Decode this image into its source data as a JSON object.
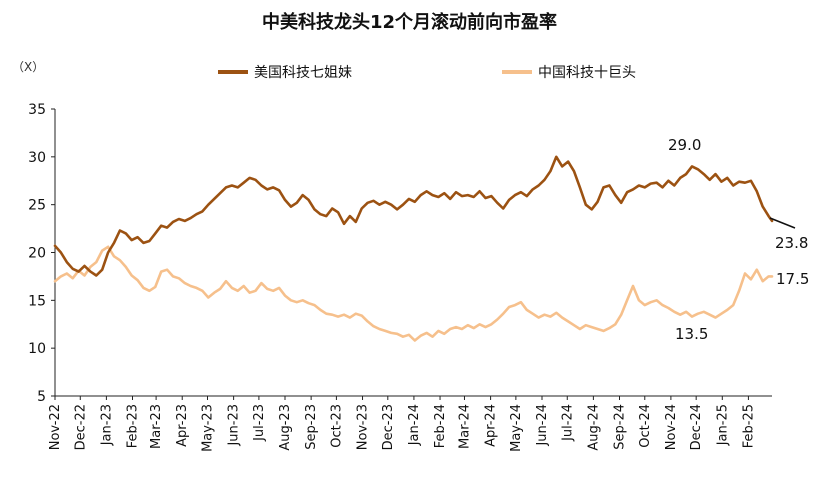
{
  "chart_data": {
    "type": "line",
    "title": "中美科技龙头12个月滚动前向市盈率",
    "unit_label": "（X）",
    "ylim": [
      5,
      35
    ],
    "yticks": [
      5,
      10,
      15,
      20,
      25,
      30,
      35
    ],
    "xlim": [
      "2022-11-01",
      "2025-03-01"
    ],
    "xticks": [
      "Nov-22",
      "Dec-22",
      "Jan-23",
      "Feb-23",
      "Mar-23",
      "Apr-23",
      "May-23",
      "Jun-23",
      "Jul-23",
      "Aug-23",
      "Sep-23",
      "Oct-23",
      "Nov-23",
      "Dec-23",
      "Jan-24",
      "Feb-24",
      "Mar-24",
      "Apr-24",
      "May-24",
      "Jun-24",
      "Jul-24",
      "Aug-24",
      "Sep-24",
      "Oct-24",
      "Nov-24",
      "Dec-24",
      "Jan-25",
      "Feb-25"
    ],
    "legend_position": "top",
    "grid": false,
    "series": [
      {
        "name": "美国科技七姐妹",
        "color": "#9C5212",
        "points": [
          [
            "2022-11-01",
            20.7
          ],
          [
            "2022-11-08",
            20.0
          ],
          [
            "2022-11-15",
            19.0
          ],
          [
            "2022-11-22",
            18.3
          ],
          [
            "2022-11-29",
            18.0
          ],
          [
            "2022-12-06",
            18.6
          ],
          [
            "2022-12-13",
            18.0
          ],
          [
            "2022-12-20",
            17.6
          ],
          [
            "2022-12-27",
            18.2
          ],
          [
            "2023-01-03",
            20.0
          ],
          [
            "2023-01-10",
            21.0
          ],
          [
            "2023-01-17",
            22.3
          ],
          [
            "2023-01-24",
            22.0
          ],
          [
            "2023-01-31",
            21.3
          ],
          [
            "2023-02-07",
            21.6
          ],
          [
            "2023-02-14",
            21.0
          ],
          [
            "2023-02-21",
            21.2
          ],
          [
            "2023-02-28",
            22.0
          ],
          [
            "2023-03-07",
            22.8
          ],
          [
            "2023-03-14",
            22.6
          ],
          [
            "2023-03-21",
            23.2
          ],
          [
            "2023-03-28",
            23.5
          ],
          [
            "2023-04-04",
            23.3
          ],
          [
            "2023-04-11",
            23.6
          ],
          [
            "2023-04-18",
            24.0
          ],
          [
            "2023-04-25",
            24.3
          ],
          [
            "2023-05-02",
            25.0
          ],
          [
            "2023-05-09",
            25.6
          ],
          [
            "2023-05-16",
            26.2
          ],
          [
            "2023-05-23",
            26.8
          ],
          [
            "2023-05-30",
            27.0
          ],
          [
            "2023-06-06",
            26.8
          ],
          [
            "2023-06-13",
            27.3
          ],
          [
            "2023-06-20",
            27.8
          ],
          [
            "2023-06-27",
            27.6
          ],
          [
            "2023-07-04",
            27.0
          ],
          [
            "2023-07-11",
            26.6
          ],
          [
            "2023-07-18",
            26.8
          ],
          [
            "2023-07-25",
            26.5
          ],
          [
            "2023-08-01",
            25.5
          ],
          [
            "2023-08-08",
            24.8
          ],
          [
            "2023-08-15",
            25.2
          ],
          [
            "2023-08-22",
            26.0
          ],
          [
            "2023-08-29",
            25.5
          ],
          [
            "2023-09-05",
            24.5
          ],
          [
            "2023-09-12",
            24.0
          ],
          [
            "2023-09-19",
            23.8
          ],
          [
            "2023-09-26",
            24.6
          ],
          [
            "2023-10-03",
            24.2
          ],
          [
            "2023-10-10",
            23.0
          ],
          [
            "2023-10-17",
            23.8
          ],
          [
            "2023-10-24",
            23.2
          ],
          [
            "2023-10-31",
            24.6
          ],
          [
            "2023-11-07",
            25.2
          ],
          [
            "2023-11-14",
            25.4
          ],
          [
            "2023-11-21",
            25.0
          ],
          [
            "2023-11-28",
            25.3
          ],
          [
            "2023-12-05",
            25.0
          ],
          [
            "2023-12-12",
            24.5
          ],
          [
            "2023-12-19",
            25.0
          ],
          [
            "2023-12-26",
            25.6
          ],
          [
            "2024-01-02",
            25.3
          ],
          [
            "2024-01-09",
            26.0
          ],
          [
            "2024-01-16",
            26.4
          ],
          [
            "2024-01-23",
            26.0
          ],
          [
            "2024-01-30",
            25.8
          ],
          [
            "2024-02-06",
            26.2
          ],
          [
            "2024-02-13",
            25.6
          ],
          [
            "2024-02-20",
            26.3
          ],
          [
            "2024-02-27",
            25.9
          ],
          [
            "2024-03-05",
            26.0
          ],
          [
            "2024-03-12",
            25.8
          ],
          [
            "2024-03-19",
            26.4
          ],
          [
            "2024-03-26",
            25.7
          ],
          [
            "2024-04-02",
            25.9
          ],
          [
            "2024-04-09",
            25.2
          ],
          [
            "2024-04-16",
            24.6
          ],
          [
            "2024-04-23",
            25.5
          ],
          [
            "2024-04-30",
            26.0
          ],
          [
            "2024-05-07",
            26.3
          ],
          [
            "2024-05-14",
            25.9
          ],
          [
            "2024-05-21",
            26.6
          ],
          [
            "2024-05-28",
            27.0
          ],
          [
            "2024-06-04",
            27.6
          ],
          [
            "2024-06-11",
            28.5
          ],
          [
            "2024-06-18",
            30.0
          ],
          [
            "2024-06-25",
            29.0
          ],
          [
            "2024-07-02",
            29.5
          ],
          [
            "2024-07-09",
            28.5
          ],
          [
            "2024-07-16",
            26.8
          ],
          [
            "2024-07-23",
            25.0
          ],
          [
            "2024-07-30",
            24.5
          ],
          [
            "2024-08-06",
            25.3
          ],
          [
            "2024-08-13",
            26.8
          ],
          [
            "2024-08-20",
            27.0
          ],
          [
            "2024-08-27",
            26.0
          ],
          [
            "2024-09-03",
            25.2
          ],
          [
            "2024-09-10",
            26.3
          ],
          [
            "2024-09-17",
            26.6
          ],
          [
            "2024-09-24",
            27.0
          ],
          [
            "2024-10-01",
            26.8
          ],
          [
            "2024-10-08",
            27.2
          ],
          [
            "2024-10-15",
            27.3
          ],
          [
            "2024-10-22",
            26.8
          ],
          [
            "2024-10-29",
            27.5
          ],
          [
            "2024-11-05",
            27.0
          ],
          [
            "2024-11-12",
            27.8
          ],
          [
            "2024-11-19",
            28.2
          ],
          [
            "2024-11-26",
            29.0
          ],
          [
            "2024-12-03",
            28.7
          ],
          [
            "2024-12-10",
            28.2
          ],
          [
            "2024-12-17",
            27.6
          ],
          [
            "2024-12-24",
            28.2
          ],
          [
            "2024-12-31",
            27.4
          ],
          [
            "2025-01-07",
            27.8
          ],
          [
            "2025-01-14",
            27.0
          ],
          [
            "2025-01-21",
            27.4
          ],
          [
            "2025-01-28",
            27.3
          ],
          [
            "2025-02-04",
            27.5
          ],
          [
            "2025-02-11",
            26.4
          ],
          [
            "2025-02-18",
            24.8
          ],
          [
            "2025-02-25",
            23.8
          ],
          [
            "2025-03-01",
            23.3
          ]
        ],
        "end_label": "23.8",
        "peak_label": "29.0"
      },
      {
        "name": "中国科技十巨头",
        "color": "#F6C08C",
        "points": [
          [
            "2022-11-01",
            17.0
          ],
          [
            "2022-11-08",
            17.5
          ],
          [
            "2022-11-15",
            17.8
          ],
          [
            "2022-11-22",
            17.3
          ],
          [
            "2022-11-29",
            18.1
          ],
          [
            "2022-12-06",
            17.6
          ],
          [
            "2022-12-13",
            18.5
          ],
          [
            "2022-12-20",
            19.0
          ],
          [
            "2022-12-27",
            20.2
          ],
          [
            "2023-01-03",
            20.6
          ],
          [
            "2023-01-10",
            19.6
          ],
          [
            "2023-01-17",
            19.2
          ],
          [
            "2023-01-24",
            18.5
          ],
          [
            "2023-01-31",
            17.6
          ],
          [
            "2023-02-07",
            17.1
          ],
          [
            "2023-02-14",
            16.3
          ],
          [
            "2023-02-21",
            16.0
          ],
          [
            "2023-02-28",
            16.4
          ],
          [
            "2023-03-07",
            18.0
          ],
          [
            "2023-03-14",
            18.2
          ],
          [
            "2023-03-21",
            17.5
          ],
          [
            "2023-03-28",
            17.3
          ],
          [
            "2023-04-04",
            16.8
          ],
          [
            "2023-04-11",
            16.5
          ],
          [
            "2023-04-18",
            16.3
          ],
          [
            "2023-04-25",
            16.0
          ],
          [
            "2023-05-02",
            15.3
          ],
          [
            "2023-05-09",
            15.8
          ],
          [
            "2023-05-16",
            16.2
          ],
          [
            "2023-05-23",
            17.0
          ],
          [
            "2023-05-30",
            16.3
          ],
          [
            "2023-06-06",
            16.0
          ],
          [
            "2023-06-13",
            16.5
          ],
          [
            "2023-06-20",
            15.8
          ],
          [
            "2023-06-27",
            16.0
          ],
          [
            "2023-07-04",
            16.8
          ],
          [
            "2023-07-11",
            16.2
          ],
          [
            "2023-07-18",
            16.0
          ],
          [
            "2023-07-25",
            16.3
          ],
          [
            "2023-08-01",
            15.5
          ],
          [
            "2023-08-08",
            15.0
          ],
          [
            "2023-08-15",
            14.8
          ],
          [
            "2023-08-22",
            15.0
          ],
          [
            "2023-08-29",
            14.7
          ],
          [
            "2023-09-05",
            14.5
          ],
          [
            "2023-09-12",
            14.0
          ],
          [
            "2023-09-19",
            13.6
          ],
          [
            "2023-09-26",
            13.5
          ],
          [
            "2023-10-03",
            13.3
          ],
          [
            "2023-10-10",
            13.5
          ],
          [
            "2023-10-17",
            13.2
          ],
          [
            "2023-10-24",
            13.6
          ],
          [
            "2023-10-31",
            13.4
          ],
          [
            "2023-11-07",
            12.8
          ],
          [
            "2023-11-14",
            12.3
          ],
          [
            "2023-11-21",
            12.0
          ],
          [
            "2023-11-28",
            11.8
          ],
          [
            "2023-12-05",
            11.6
          ],
          [
            "2023-12-12",
            11.5
          ],
          [
            "2023-12-19",
            11.2
          ],
          [
            "2023-12-26",
            11.4
          ],
          [
            "2024-01-02",
            10.8
          ],
          [
            "2024-01-09",
            11.3
          ],
          [
            "2024-01-16",
            11.6
          ],
          [
            "2024-01-23",
            11.2
          ],
          [
            "2024-01-30",
            11.8
          ],
          [
            "2024-02-06",
            11.5
          ],
          [
            "2024-02-13",
            12.0
          ],
          [
            "2024-02-20",
            12.2
          ],
          [
            "2024-02-27",
            12.0
          ],
          [
            "2024-03-05",
            12.4
          ],
          [
            "2024-03-12",
            12.1
          ],
          [
            "2024-03-19",
            12.5
          ],
          [
            "2024-03-26",
            12.2
          ],
          [
            "2024-04-02",
            12.5
          ],
          [
            "2024-04-09",
            13.0
          ],
          [
            "2024-04-16",
            13.6
          ],
          [
            "2024-04-23",
            14.3
          ],
          [
            "2024-04-30",
            14.5
          ],
          [
            "2024-05-07",
            14.8
          ],
          [
            "2024-05-14",
            14.0
          ],
          [
            "2024-05-21",
            13.6
          ],
          [
            "2024-05-28",
            13.2
          ],
          [
            "2024-06-04",
            13.5
          ],
          [
            "2024-06-11",
            13.3
          ],
          [
            "2024-06-18",
            13.7
          ],
          [
            "2024-06-25",
            13.2
          ],
          [
            "2024-07-02",
            12.8
          ],
          [
            "2024-07-09",
            12.4
          ],
          [
            "2024-07-16",
            12.0
          ],
          [
            "2024-07-23",
            12.4
          ],
          [
            "2024-07-30",
            12.2
          ],
          [
            "2024-08-06",
            12.0
          ],
          [
            "2024-08-13",
            11.8
          ],
          [
            "2024-08-20",
            12.1
          ],
          [
            "2024-08-27",
            12.5
          ],
          [
            "2024-09-03",
            13.5
          ],
          [
            "2024-09-10",
            15.0
          ],
          [
            "2024-09-17",
            16.5
          ],
          [
            "2024-09-24",
            15.0
          ],
          [
            "2024-10-01",
            14.5
          ],
          [
            "2024-10-08",
            14.8
          ],
          [
            "2024-10-15",
            15.0
          ],
          [
            "2024-10-22",
            14.5
          ],
          [
            "2024-10-29",
            14.2
          ],
          [
            "2024-11-05",
            13.8
          ],
          [
            "2024-11-12",
            13.5
          ],
          [
            "2024-11-19",
            13.8
          ],
          [
            "2024-11-26",
            13.3
          ],
          [
            "2024-12-03",
            13.6
          ],
          [
            "2024-12-10",
            13.8
          ],
          [
            "2024-12-17",
            13.5
          ],
          [
            "2024-12-24",
            13.2
          ],
          [
            "2024-12-31",
            13.6
          ],
          [
            "2025-01-07",
            14.0
          ],
          [
            "2025-01-14",
            14.5
          ],
          [
            "2025-01-21",
            16.0
          ],
          [
            "2025-01-28",
            17.8
          ],
          [
            "2025-02-04",
            17.2
          ],
          [
            "2025-02-11",
            18.2
          ],
          [
            "2025-02-18",
            17.0
          ],
          [
            "2025-02-25",
            17.5
          ],
          [
            "2025-03-01",
            17.5
          ]
        ],
        "end_label": "17.5",
        "trough_label": "13.5"
      }
    ]
  }
}
